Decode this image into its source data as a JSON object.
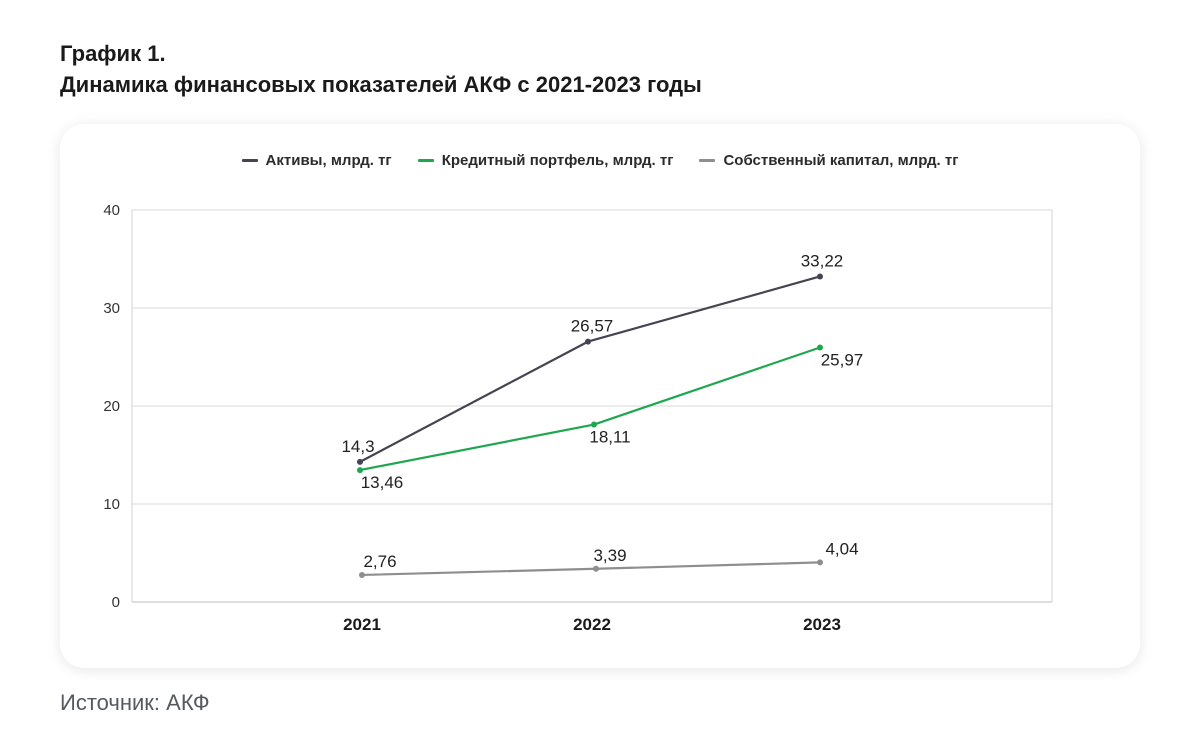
{
  "header": {
    "line1": "График 1.",
    "line2": "Динамика финансовых показателей АКФ с 2021-2023 годы"
  },
  "source": "Источник: АКФ",
  "chart_data": {
    "type": "line",
    "x": [
      "2021",
      "2022",
      "2023"
    ],
    "ylim": [
      0,
      40
    ],
    "yticks": [
      "0",
      "10",
      "20",
      "30",
      "40"
    ],
    "grid": true,
    "legend_position": "top",
    "series": [
      {
        "name": "Активы, млрд. тг",
        "color": "#454552",
        "values": [
          14.3,
          26.57,
          33.22
        ],
        "labels": [
          "14,3",
          "26,57",
          "33,22"
        ]
      },
      {
        "name": "Кредитный портфель, млрд. тг",
        "color": "#1fa650",
        "values": [
          13.46,
          18.11,
          25.97
        ],
        "labels": [
          "13,46",
          "18,11",
          "25,97"
        ]
      },
      {
        "name": "Собственный капитал, млрд. тг",
        "color": "#8e8e8e",
        "values": [
          2.76,
          3.39,
          4.04
        ],
        "labels": [
          "2,76",
          "3,39",
          "4,04"
        ]
      }
    ]
  }
}
